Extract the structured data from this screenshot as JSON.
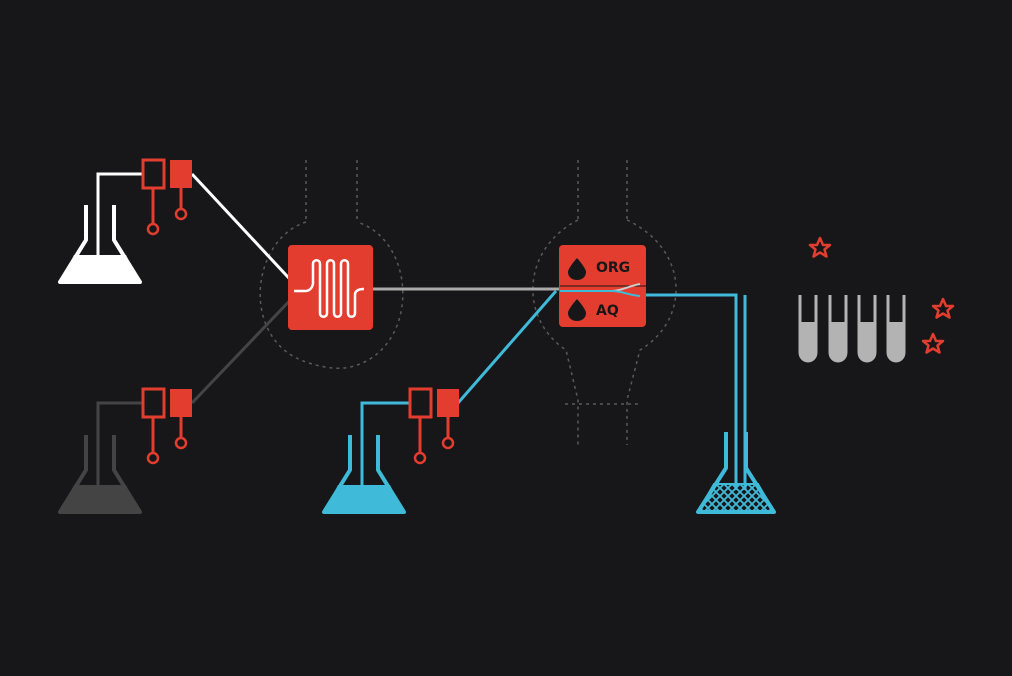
{
  "diagram": {
    "separator_labels": {
      "organic": "ORG",
      "aqueous": "AQ"
    },
    "icons": {
      "reagent_flask_white": "erlenmeyer-flask-icon",
      "reagent_flask_gray": "erlenmeyer-flask-icon",
      "reagent_flask_blue": "erlenmeyer-flask-icon",
      "waste_flask": "erlenmeyer-flask-hatched-icon",
      "pump": "syringe-pump-icon",
      "coil_reactor": "coil-reactor-icon",
      "separator": "liquid-liquid-separator-icon",
      "droplet": "droplet-icon",
      "collection_tubes": "test-tube-rack-icon",
      "star": "star-icon"
    },
    "colors": {
      "background": "#17171a",
      "accent_red": "#e33d2f",
      "white_stream": "#ffffff",
      "gray_stream": "#444444",
      "aqueous_blue": "#3fbbd9",
      "product_line": "#aaaaaa",
      "tube": "#b3b3b3",
      "dashed_outline": "#5a5a5a"
    }
  }
}
